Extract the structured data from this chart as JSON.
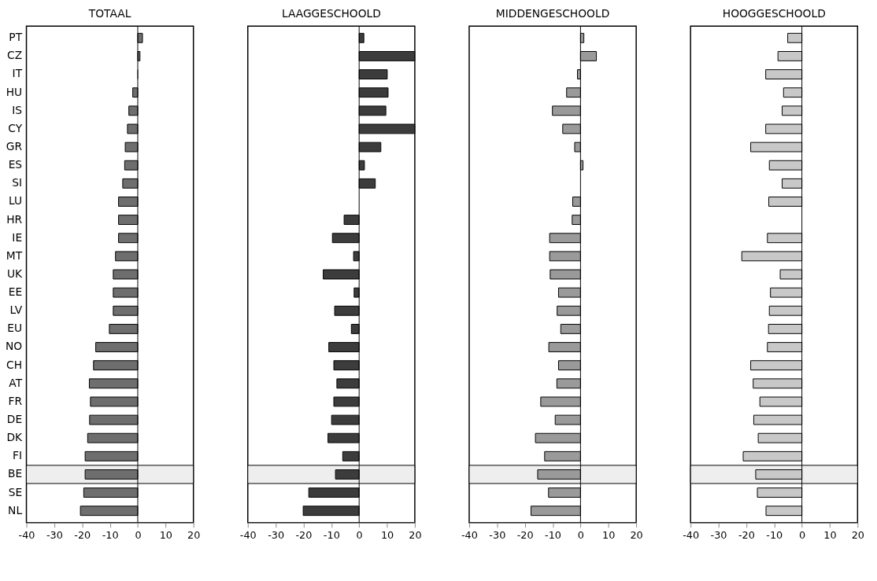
{
  "chart_data": [
    {
      "type": "bar",
      "orientation": "horizontal",
      "title": "TOTAAL",
      "categories": [
        "PT",
        "CZ",
        "IT",
        "HU",
        "IS",
        "CY",
        "GR",
        "ES",
        "SI",
        "LU",
        "HR",
        "IE",
        "MT",
        "UK",
        "EE",
        "LV",
        "EU",
        "NO",
        "CH",
        "AT",
        "FR",
        "DE",
        "DK",
        "FI",
        "BE",
        "SE",
        "NL"
      ],
      "values": [
        1.7,
        0.8,
        0,
        -1.8,
        -3.2,
        -3.7,
        -4.5,
        -4.7,
        -5.4,
        -6.9,
        -6.9,
        -6.9,
        -8.0,
        -8.8,
        -8.8,
        -8.8,
        -10.2,
        -15.1,
        -15.9,
        -17.4,
        -17.0,
        -17.3,
        -18.0,
        -18.9,
        -18.9,
        -19.4,
        -20.6
      ],
      "color": "#6e6e6e",
      "xlim": [
        -40,
        20
      ],
      "xticks": [
        -40,
        -30,
        -20,
        -10,
        0,
        10,
        20
      ],
      "bands": [
        {
          "axis": "y",
          "from": "BE",
          "to": "BE"
        }
      ]
    },
    {
      "type": "bar",
      "orientation": "horizontal",
      "title": "LAAGGESCHOOLD",
      "categories": [
        "PT",
        "CZ",
        "IT",
        "HU",
        "IS",
        "CY",
        "GR",
        "ES",
        "SI",
        "LU",
        "HR",
        "IE",
        "MT",
        "UK",
        "EE",
        "LV",
        "EU",
        "NO",
        "CH",
        "AT",
        "FR",
        "DE",
        "DK",
        "FI",
        "BE",
        "SE",
        "NL"
      ],
      "values": [
        1.7,
        20,
        10.1,
        10.4,
        9.6,
        20,
        7.8,
        1.9,
        5.8,
        null,
        -5.4,
        -9.6,
        -2.0,
        -12.9,
        -1.8,
        -8.8,
        -2.8,
        -10.9,
        -9.1,
        -8.0,
        -9.1,
        -9.9,
        -11.2,
        -5.9,
        -8.5,
        -18.1,
        -20.1
      ],
      "color": "#3c3c3c",
      "xlim": [
        -40,
        20
      ],
      "xticks": [
        -40,
        -30,
        -20,
        -10,
        0,
        10,
        20
      ],
      "tick_labels": "x",
      "bands": [
        {
          "axis": "y",
          "from": "BE",
          "to": "BE"
        }
      ]
    },
    {
      "type": "bar",
      "orientation": "horizontal",
      "title": "MIDDENGESCHOOLD",
      "categories": [
        "PT",
        "CZ",
        "IT",
        "HU",
        "IS",
        "CY",
        "GR",
        "ES",
        "SI",
        "LU",
        "HR",
        "IE",
        "MT",
        "UK",
        "EE",
        "LV",
        "EU",
        "NO",
        "CH",
        "AT",
        "FR",
        "DE",
        "DK",
        "FI",
        "BE",
        "SE",
        "NL"
      ],
      "values": [
        1.2,
        5.7,
        -1.1,
        -5.0,
        -10.1,
        -6.4,
        -2.1,
        0.9,
        null,
        -2.8,
        -3.0,
        -11.1,
        -11.1,
        -10.9,
        -7.9,
        -8.4,
        -7.1,
        -11.4,
        -7.9,
        -8.5,
        -14.3,
        -9.1,
        -16.2,
        -12.9,
        -15.4,
        -11.5,
        -17.8
      ],
      "color": "#9a9a9a",
      "xlim": [
        -40,
        20
      ],
      "xticks": [
        -40,
        -30,
        -20,
        -10,
        0,
        10,
        20
      ],
      "tick_labels": "x",
      "bands": [
        {
          "axis": "y",
          "from": "BE",
          "to": "BE"
        }
      ]
    },
    {
      "type": "bar",
      "orientation": "horizontal",
      "title": "HOOGGESCHOOLD",
      "categories": [
        "PT",
        "CZ",
        "IT",
        "HU",
        "IS",
        "CY",
        "GR",
        "ES",
        "SI",
        "LU",
        "HR",
        "IE",
        "MT",
        "UK",
        "EE",
        "LV",
        "EU",
        "NO",
        "CH",
        "AT",
        "FR",
        "DE",
        "DK",
        "FI",
        "BE",
        "SE",
        "NL"
      ],
      "values": [
        -5.1,
        -8.6,
        -13.0,
        -6.6,
        -7.1,
        -13.0,
        -18.4,
        -11.7,
        -7.1,
        -11.9,
        null,
        -12.4,
        -21.6,
        -7.8,
        -11.3,
        -11.7,
        -12.0,
        -12.4,
        -18.4,
        -17.5,
        -15.1,
        -17.3,
        -15.7,
        -21.1,
        -16.6,
        -16.0,
        -12.9
      ],
      "color": "#c8c8c8",
      "xlim": [
        -40,
        20
      ],
      "xticks": [
        -40,
        -30,
        -20,
        -10,
        0,
        10,
        20
      ],
      "tick_labels": "x",
      "bands": [
        {
          "axis": "y",
          "from": "BE",
          "to": "BE"
        }
      ]
    }
  ]
}
